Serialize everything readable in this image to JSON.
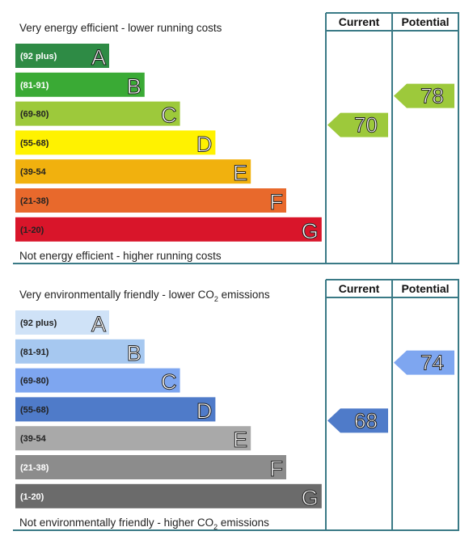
{
  "chart_data": [
    {
      "type": "bar",
      "top_caption": "Very energy efficient - lower running costs",
      "bottom_caption": "Not energy efficient - higher running costs",
      "columns": [
        "Current",
        "Potential"
      ],
      "bands": [
        {
          "range": "(92 plus)",
          "letter": "A",
          "color": "#2e8b45",
          "text_color": "#ffffff"
        },
        {
          "range": "(81-91)",
          "letter": "B",
          "color": "#3aaa35",
          "text_color": "#ffffff"
        },
        {
          "range": "(69-80)",
          "letter": "C",
          "color": "#9dc93b",
          "text_color": "#222222"
        },
        {
          "range": "(55-68)",
          "letter": "D",
          "color": "#fff200",
          "text_color": "#222222"
        },
        {
          "range": "(39-54",
          "letter": "E",
          "color": "#f1b10e",
          "text_color": "#222222"
        },
        {
          "range": "(21-38)",
          "letter": "F",
          "color": "#e8692c",
          "text_color": "#222222"
        },
        {
          "range": "(1-20)",
          "letter": "G",
          "color": "#d9152a",
          "text_color": "#222222"
        }
      ],
      "current": {
        "value": 70,
        "band": "C",
        "color": "#9dc93b"
      },
      "potential": {
        "value": 78,
        "band": "C",
        "color": "#9dc93b"
      }
    },
    {
      "type": "bar",
      "top_caption": "Very environmentally friendly - lower CO",
      "top_caption_sub": "2",
      "top_caption_tail": " emissions",
      "bottom_caption": "Not environmentally friendly - higher CO",
      "bottom_caption_sub": "2",
      "bottom_caption_tail": " emissions",
      "columns": [
        "Current",
        "Potential"
      ],
      "bands": [
        {
          "range": "(92 plus)",
          "letter": "A",
          "color": "#cfe2f7",
          "text_color": "#222222"
        },
        {
          "range": "(81-91)",
          "letter": "B",
          "color": "#a6c8f0",
          "text_color": "#222222"
        },
        {
          "range": "(69-80)",
          "letter": "C",
          "color": "#7ea6f0",
          "text_color": "#222222"
        },
        {
          "range": "(55-68)",
          "letter": "D",
          "color": "#4f7bc9",
          "text_color": "#222222"
        },
        {
          "range": "(39-54",
          "letter": "E",
          "color": "#a9a9a9",
          "text_color": "#222222"
        },
        {
          "range": "(21-38)",
          "letter": "F",
          "color": "#8c8c8c",
          "text_color": "#ffffff"
        },
        {
          "range": "(1-20)",
          "letter": "G",
          "color": "#6b6b6b",
          "text_color": "#ffffff"
        }
      ],
      "current": {
        "value": 68,
        "band": "D",
        "color": "#4f7bc9"
      },
      "potential": {
        "value": 74,
        "band": "C",
        "color": "#7ea6f0"
      }
    }
  ]
}
